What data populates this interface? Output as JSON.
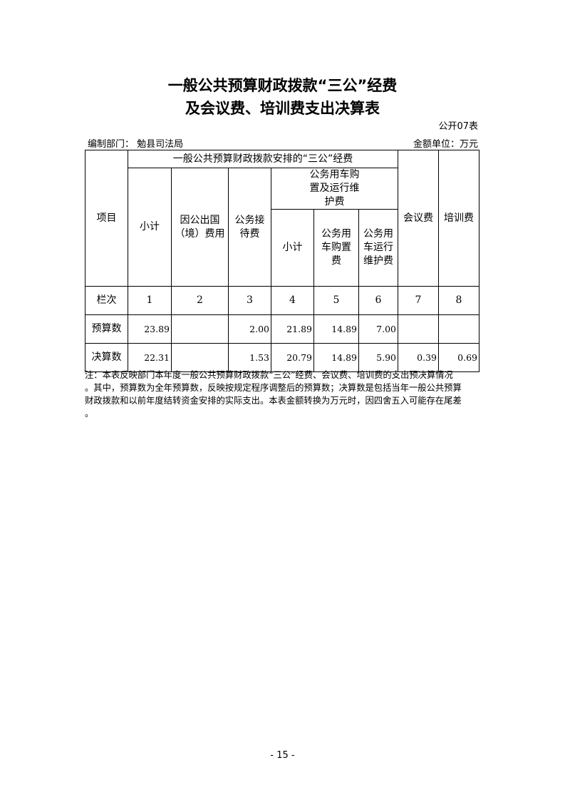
{
  "title": {
    "line1": "一般公共预算财政拨款“三公”经费",
    "line2": "及会议费、培训费支出决算表"
  },
  "table_code": "公开07表",
  "department": "编制部门：  勉县司法局",
  "unit": "金额单位：万元",
  "headers": {
    "item": "项目",
    "group": "一般公共预算财政拨款安排的“三公”经费",
    "subtotal": "小计",
    "abroad": "因公出国（境）费用",
    "reception": "公务接待费",
    "vehicle_group": "公务用车购置及运行维护费",
    "vehicle_subtotal": "小计",
    "vehicle_purchase": "公务用车购置费",
    "vehicle_operation": "公务用车运行维护费",
    "meeting": "会议费",
    "training": "培训费"
  },
  "rows": [
    {
      "label": "栏次",
      "values": [
        "1",
        "2",
        "3",
        "4",
        "5",
        "6",
        "7",
        "8"
      ]
    },
    {
      "label": "预算数",
      "values": [
        "23.89",
        "",
        "2.00",
        "21.89",
        "14.89",
        "7.00",
        "",
        ""
      ]
    },
    {
      "label": "决算数",
      "values": [
        "22.31",
        "",
        "1.53",
        "20.79",
        "14.89",
        "5.90",
        "0.39",
        "0.69"
      ]
    }
  ],
  "note_lines": [
    "注：本表反映部门本年度一般公共预算财政拨款“三公”经费、会议费、培训费的支出预决算情况",
    "。其中，预算数为全年预算数，反映按规定程序调整后的预算数；决算数是包括当年一般公共预算",
    "财政拨款和以前年度结转资金安排的实际支出。本表金额转换为万元时，因四舍五入可能存在尾差",
    "。"
  ],
  "page_number": "- 15 -"
}
